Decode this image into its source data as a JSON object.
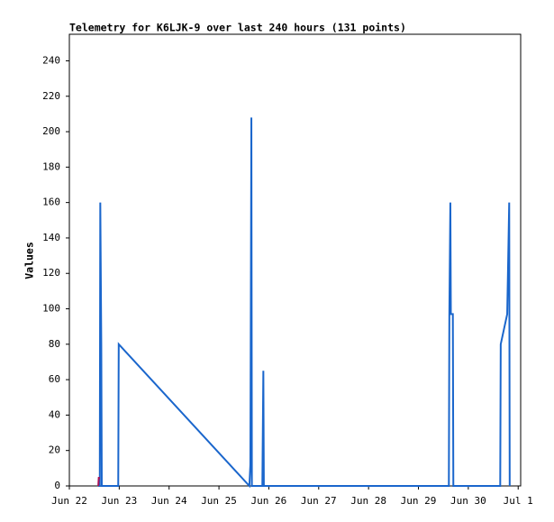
{
  "chart_data": {
    "type": "line",
    "title": "Telemetry for K6LJK-9 over last 240 hours (131 points)",
    "y_label": "Values",
    "xlim": [
      0,
      9.05
    ],
    "xticks": [
      {
        "value": 0,
        "label": "Jun 22"
      },
      {
        "value": 1,
        "label": "Jun 23"
      },
      {
        "value": 2,
        "label": "Jun 24"
      },
      {
        "value": 3,
        "label": "Jun 25"
      },
      {
        "value": 4,
        "label": "Jun 26"
      },
      {
        "value": 5,
        "label": "Jun 27"
      },
      {
        "value": 6,
        "label": "Jun 28"
      },
      {
        "value": 7,
        "label": "Jun 29"
      },
      {
        "value": 8,
        "label": "Jun 30"
      },
      {
        "value": 9,
        "label": "Jul 1"
      }
    ],
    "ylim": [
      0,
      255
    ],
    "yticks": [
      0,
      20,
      40,
      60,
      80,
      100,
      120,
      140,
      160,
      180,
      200,
      220,
      240
    ],
    "series": [
      {
        "color": "#1a66cc",
        "x": [
          0.58,
          0.61,
          0.62,
          0.64,
          0.65,
          0.98,
          0.99,
          3.61,
          3.63,
          3.65,
          3.66,
          3.87,
          3.88,
          3.89,
          3.9,
          7.61,
          7.62,
          7.64,
          7.65,
          7.69,
          7.7,
          8.64,
          8.65,
          8.78,
          8.8,
          8.82,
          8.83
        ],
        "values": [
          0,
          0,
          160,
          80,
          0,
          0,
          80,
          0,
          12,
          208,
          0,
          0,
          32,
          65,
          0,
          0,
          97,
          160,
          97,
          97,
          0,
          0,
          80,
          97,
          128,
          160,
          0
        ]
      },
      {
        "color": "#aa1155",
        "x": [
          0.58,
          0.59,
          0.6
        ],
        "values": [
          0,
          5,
          4
        ]
      }
    ]
  }
}
